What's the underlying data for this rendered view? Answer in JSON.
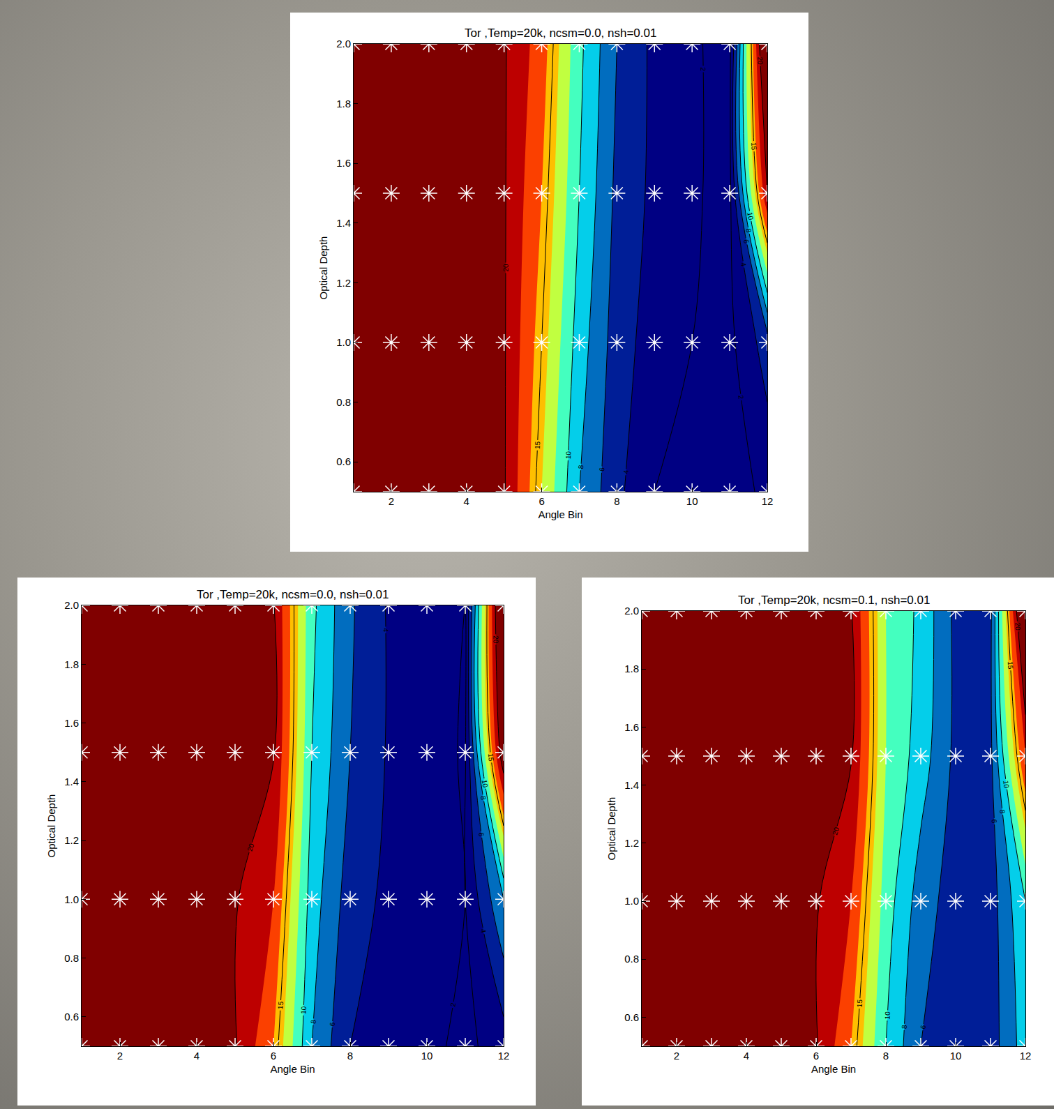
{
  "chart_data": [
    {
      "type": "contour",
      "title": "Tor ,Temp=20k, ncsm=0.0, nsh=0.01",
      "x_label": "Angle Bin",
      "y_label": "Optical Depth",
      "x": [
        1,
        2,
        3,
        4,
        5,
        6,
        7,
        8,
        9,
        10,
        11,
        12
      ],
      "y": [
        0.5,
        1.0,
        1.5,
        2.0
      ],
      "z": [
        [
          30,
          30,
          30,
          30,
          20.2,
          14,
          8,
          4.5,
          2,
          1.5,
          1,
          2.5
        ],
        [
          30,
          30,
          30,
          30,
          20.2,
          15,
          9,
          5,
          3,
          2,
          1.5,
          5
        ],
        [
          30,
          30,
          30,
          30,
          20.2,
          16,
          10,
          5.5,
          3.5,
          2.2,
          1.5,
          20
        ],
        [
          30,
          30,
          30,
          30,
          20.2,
          17,
          10.5,
          6,
          3.5,
          2.2,
          1.5,
          25
        ]
      ],
      "contour_levels": [
        2,
        4,
        6,
        8,
        10,
        15,
        20
      ],
      "zlim": [
        4,
        20
      ],
      "xlim": [
        1,
        12
      ],
      "xticks": [
        2,
        4,
        6,
        8,
        10,
        12
      ],
      "ylim": [
        0.5,
        2.0
      ],
      "yticks": [
        0.6,
        0.8,
        {
          "value": 1,
          "label": "1.0"
        },
        1.2,
        1.4,
        1.6,
        1.8,
        {
          "value": 2,
          "label": "2.0"
        }
      ],
      "marker": "asterisk"
    },
    {
      "type": "contour",
      "title": "Tor ,Temp=20k, ncsm=0.0, nsh=0.01",
      "x_label": "Angle Bin",
      "y_label": "Optical Depth",
      "x": [
        1,
        2,
        3,
        4,
        5,
        6,
        7,
        8,
        9,
        10,
        11,
        12
      ],
      "y": [
        0.5,
        1.0,
        1.5,
        2.0
      ],
      "z": [
        [
          30,
          30,
          30,
          30,
          20.2,
          16,
          8,
          4,
          3,
          2.5,
          1.5,
          3
        ],
        [
          30,
          30,
          30,
          30,
          20.2,
          18,
          9,
          5,
          3.5,
          2.5,
          2,
          8
        ],
        [
          30,
          30,
          30,
          30,
          25,
          20.2,
          10,
          6,
          3.8,
          2.8,
          1.8,
          22
        ],
        [
          30,
          30,
          30,
          30,
          30,
          20.2,
          10.5,
          6.3,
          3.8,
          2.8,
          2,
          25
        ]
      ],
      "contour_levels": [
        2,
        4,
        6,
        8,
        10,
        15,
        20
      ],
      "zlim": [
        4,
        20
      ],
      "xlim": [
        1,
        12
      ],
      "xticks": [
        2,
        4,
        6,
        8,
        10,
        12
      ],
      "ylim": [
        0.5,
        2.0
      ],
      "yticks": [
        0.6,
        0.8,
        {
          "value": 1,
          "label": "1.0"
        },
        1.2,
        1.4,
        1.6,
        1.8,
        {
          "value": 2,
          "label": "2.0"
        }
      ],
      "marker": "asterisk"
    },
    {
      "type": "contour",
      "title": "Tor ,Temp=20k, ncsm=0.1, nsh=0.01",
      "x_label": "Angle Bin",
      "y_label": "Optical Depth",
      "x": [
        1,
        2,
        3,
        4,
        5,
        6,
        7,
        8,
        9,
        10,
        11,
        12
      ],
      "y": [
        0.5,
        1.0,
        1.5,
        2.0
      ],
      "z": [
        [
          30,
          30,
          30,
          30,
          30,
          20.2,
          16,
          10,
          6,
          5,
          5,
          9
        ],
        [
          30,
          30,
          30,
          30,
          30,
          20.2,
          18,
          11,
          7,
          5,
          5,
          10
        ],
        [
          30,
          30,
          30,
          30,
          30,
          25,
          20.2,
          12,
          9,
          5.5,
          5.5,
          18
        ],
        [
          30,
          30,
          30,
          30,
          30,
          30,
          20.2,
          12,
          9.5,
          5.5,
          5.5,
          25
        ]
      ],
      "contour_levels": [
        2,
        4,
        6,
        8,
        10,
        15,
        20
      ],
      "zlim": [
        4,
        20
      ],
      "xlim": [
        1,
        12
      ],
      "xticks": [
        2,
        4,
        6,
        8,
        10,
        12
      ],
      "ylim": [
        0.5,
        2.0
      ],
      "yticks": [
        0.6,
        0.8,
        {
          "value": 1,
          "label": "1.0"
        },
        1.2,
        1.4,
        1.6,
        1.8,
        {
          "value": 2,
          "label": "2.0"
        }
      ],
      "marker": "asterisk"
    }
  ]
}
